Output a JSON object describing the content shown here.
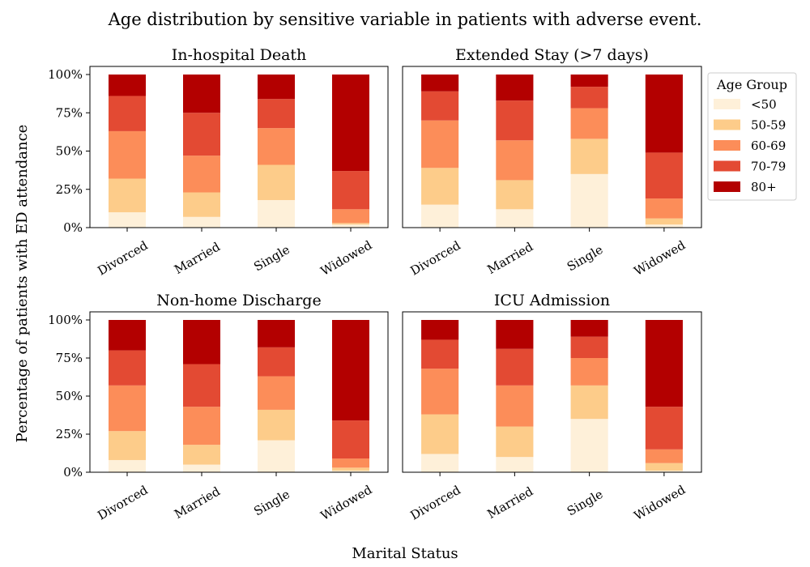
{
  "figure": {
    "title": "Age distribution by sensitive variable in patients with adverse event.",
    "xlabel": "Marital Status",
    "ylabel": "Percentage of patients with ED attendance"
  },
  "legend": {
    "title": "Age Group",
    "placement": "right of top-right panel",
    "items": [
      "<50",
      "50-59",
      "60-69",
      "70-79",
      "80+"
    ]
  },
  "colors": {
    "<50": "#fef0d9",
    "50-59": "#fdcc8a",
    "60-69": "#fc8d59",
    "70-79": "#e34a33",
    "80+": "#b30000"
  },
  "chart_data": [
    {
      "type": "bar",
      "stacked": true,
      "title": "In-hospital Death",
      "categories": [
        "Divorced",
        "Married",
        "Single",
        "Widowed"
      ],
      "ylim": [
        0,
        100
      ],
      "yticks": [
        "0%",
        "25%",
        "50%",
        "75%",
        "100%"
      ],
      "series": [
        {
          "name": "<50",
          "values": [
            10,
            7,
            18,
            2
          ]
        },
        {
          "name": "50-59",
          "values": [
            22,
            16,
            23,
            1
          ]
        },
        {
          "name": "60-69",
          "values": [
            31,
            24,
            24,
            9
          ]
        },
        {
          "name": "70-79",
          "values": [
            23,
            28,
            19,
            25
          ]
        },
        {
          "name": "80+",
          "values": [
            14,
            25,
            16,
            63
          ]
        }
      ]
    },
    {
      "type": "bar",
      "stacked": true,
      "title": "Extended Stay (>7 days)",
      "categories": [
        "Divorced",
        "Married",
        "Single",
        "Widowed"
      ],
      "ylim": [
        0,
        100
      ],
      "yticks": [],
      "series": [
        {
          "name": "<50",
          "values": [
            15,
            12,
            35,
            2
          ]
        },
        {
          "name": "50-59",
          "values": [
            24,
            19,
            23,
            4
          ]
        },
        {
          "name": "60-69",
          "values": [
            31,
            26,
            20,
            13
          ]
        },
        {
          "name": "70-79",
          "values": [
            19,
            26,
            14,
            30
          ]
        },
        {
          "name": "80+",
          "values": [
            11,
            17,
            8,
            51
          ]
        }
      ]
    },
    {
      "type": "bar",
      "stacked": true,
      "title": "Non-home Discharge",
      "categories": [
        "Divorced",
        "Married",
        "Single",
        "Widowed"
      ],
      "ylim": [
        0,
        100
      ],
      "yticks": [
        "0%",
        "25%",
        "50%",
        "75%",
        "100%"
      ],
      "series": [
        {
          "name": "<50",
          "values": [
            8,
            5,
            21,
            1
          ]
        },
        {
          "name": "50-59",
          "values": [
            19,
            13,
            20,
            2
          ]
        },
        {
          "name": "60-69",
          "values": [
            30,
            25,
            22,
            6
          ]
        },
        {
          "name": "70-79",
          "values": [
            23,
            28,
            19,
            25
          ]
        },
        {
          "name": "80+",
          "values": [
            20,
            29,
            18,
            66
          ]
        }
      ]
    },
    {
      "type": "bar",
      "stacked": true,
      "title": "ICU Admission",
      "categories": [
        "Divorced",
        "Married",
        "Single",
        "Widowed"
      ],
      "ylim": [
        0,
        100
      ],
      "yticks": [],
      "series": [
        {
          "name": "<50",
          "values": [
            12,
            10,
            35,
            1
          ]
        },
        {
          "name": "50-59",
          "values": [
            26,
            20,
            22,
            5
          ]
        },
        {
          "name": "60-69",
          "values": [
            30,
            27,
            18,
            9
          ]
        },
        {
          "name": "70-79",
          "values": [
            19,
            24,
            14,
            28
          ]
        },
        {
          "name": "80+",
          "values": [
            13,
            19,
            11,
            57
          ]
        }
      ]
    }
  ]
}
